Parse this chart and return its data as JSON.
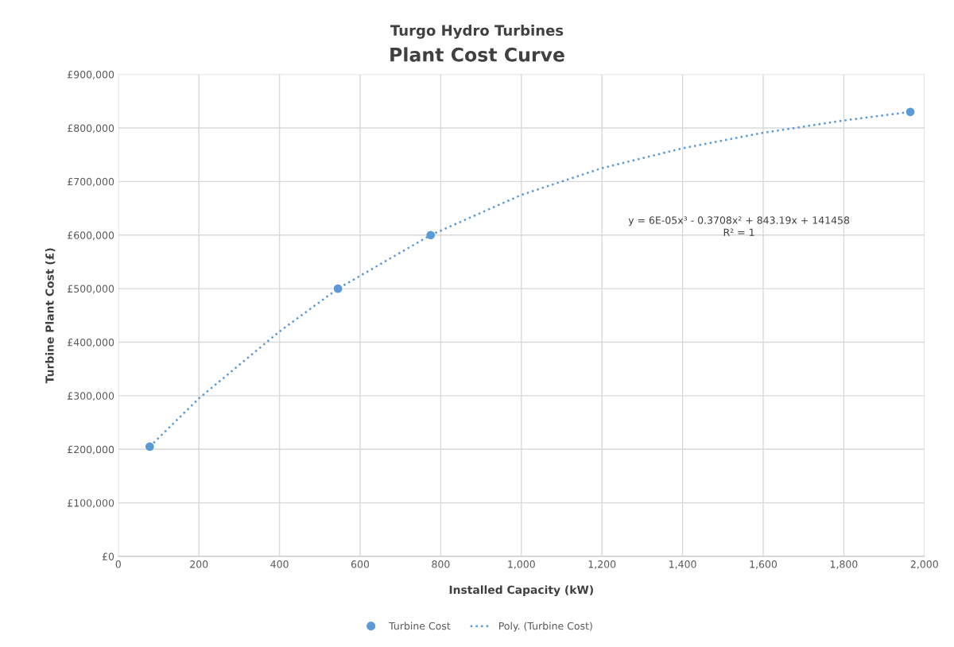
{
  "chart_data": {
    "type": "scatter",
    "title": "Plant Cost Curve",
    "subtitle": "Turgo Hydro Turbines",
    "xlabel": "Installed Capacity (kW)",
    "ylabel": "Turbine Plant Cost (£)",
    "series": [
      {
        "name": "Turbine Cost",
        "color": "#5b9bd5",
        "marker": "circle",
        "x": [
          78,
          545,
          775,
          1965
        ],
        "values": [
          205000,
          500000,
          600000,
          830000
        ]
      },
      {
        "name": "Poly. (Turbine Cost)",
        "type": "line",
        "color": "#5b9bd5",
        "line_style": "dotted",
        "marker": "none",
        "x": [
          78,
          200,
          400,
          545,
          775,
          1000,
          1200,
          1400,
          1600,
          1800,
          1965
        ],
        "values": [
          205000,
          295000,
          420000,
          500000,
          600000,
          675000,
          725000,
          762000,
          791000,
          814000,
          830000
        ]
      }
    ],
    "annotations": [
      "y = 6E-05x³ - 0.3708x² + 843.19x + 141458",
      "R² = 1"
    ],
    "xlim": [
      0,
      2000
    ],
    "xticks": [
      {
        "value": 0,
        "label": "0"
      },
      {
        "value": 200,
        "label": "200"
      },
      {
        "value": 400,
        "label": "400"
      },
      {
        "value": 600,
        "label": "600"
      },
      {
        "value": 800,
        "label": "800"
      },
      {
        "value": 1000,
        "label": "1,000"
      },
      {
        "value": 1200,
        "label": "1,200"
      },
      {
        "value": 1400,
        "label": "1,400"
      },
      {
        "value": 1600,
        "label": "1,600"
      },
      {
        "value": 1800,
        "label": "1,800"
      },
      {
        "value": 2000,
        "label": "2,000"
      }
    ],
    "ylim": [
      0,
      900000
    ],
    "yticks": [
      {
        "value": 0,
        "label": "£0"
      },
      {
        "value": 100000,
        "label": "£100,000"
      },
      {
        "value": 200000,
        "label": "£200,000"
      },
      {
        "value": 300000,
        "label": "£300,000"
      },
      {
        "value": 400000,
        "label": "£400,000"
      },
      {
        "value": 500000,
        "label": "£500,000"
      },
      {
        "value": 600000,
        "label": "£600,000"
      },
      {
        "value": 700000,
        "label": "£700,000"
      },
      {
        "value": 800000,
        "label": "£800,000"
      },
      {
        "value": 900000,
        "label": "£900,000"
      }
    ],
    "grid": true,
    "legend": "bottom"
  }
}
